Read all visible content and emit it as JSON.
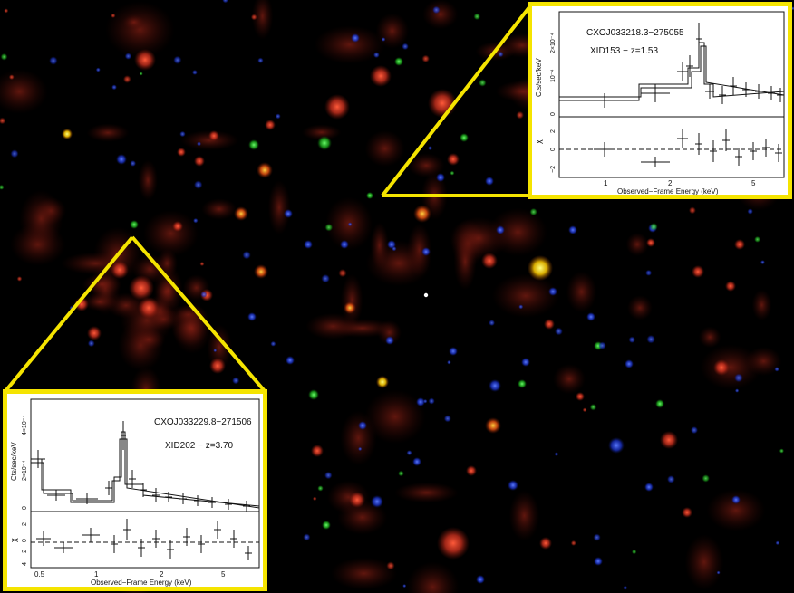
{
  "image": {
    "description_colors": {
      "red": "#d23a2a",
      "green": "#1fb21f",
      "blue": "#1f3fd0",
      "yellow": "#f5e400"
    }
  },
  "inset_a": {
    "source_name": "CXOJ033218.3−275055",
    "source_id": "XID153 − z=1.53",
    "ylabel_top": "Cts/sec/keV",
    "ylabel_bottom": "χ",
    "xlabel": "Observed−Frame Energy (keV)",
    "y_ticks_top": [
      "2×10⁻⁴",
      "10⁻⁴",
      "0"
    ],
    "y_ticks_bottom": [
      "2",
      "0",
      "−2"
    ],
    "x_ticks": [
      "1",
      "2",
      "5"
    ]
  },
  "inset_b": {
    "source_name": "CXOJ033229.8−271506",
    "source_id": "XID202 − z=3.70",
    "ylabel_top": "Cts/sec/keV",
    "ylabel_bottom": "χ",
    "xlabel": "Observed−Frame Energy (keV)",
    "y_ticks_top": [
      "4×10⁻⁴",
      "2×10⁻⁴",
      "0"
    ],
    "y_ticks_bottom": [
      "2",
      "0",
      "−2",
      "−4"
    ],
    "x_ticks": [
      "0.5",
      "1",
      "2",
      "5"
    ]
  }
}
